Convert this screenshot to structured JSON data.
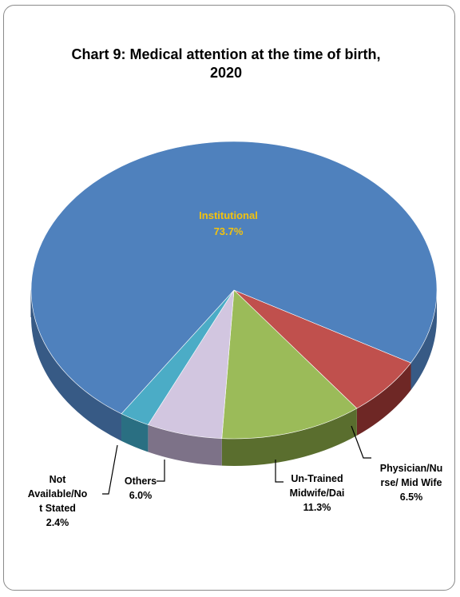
{
  "chart_data": {
    "type": "pie",
    "title_lines": [
      "Chart 9: Medical attention at the time of birth,",
      "2020"
    ],
    "slices": [
      {
        "key": "institutional",
        "label_lines": [
          "Institutional"
        ],
        "value_text": "73.7%",
        "value": 73.7,
        "color": "#4F81BD",
        "side": "#375A85",
        "label_color": "#F2C20F"
      },
      {
        "key": "physician",
        "label_lines": [
          "Physician/Nu",
          "rse/ Mid Wife"
        ],
        "value_text": "6.5%",
        "value": 6.5,
        "color": "#C0504D",
        "side": "#6E2725",
        "label_color": "#000000"
      },
      {
        "key": "untrained",
        "label_lines": [
          "Un-Trained",
          "Midwife/Dai"
        ],
        "value_text": "11.3%",
        "value": 11.3,
        "color": "#9BBB59",
        "side": "#5A6E2E",
        "label_color": "#000000"
      },
      {
        "key": "others",
        "label_lines": [
          "Others"
        ],
        "value_text": "6.0%",
        "value": 6.0,
        "color": "#D2C6E0",
        "side": "#7D7288",
        "label_color": "#000000"
      },
      {
        "key": "not_available",
        "label_lines": [
          "Not",
          "Available/No",
          "t Stated"
        ],
        "value_text": "2.4%",
        "value": 2.4,
        "color": "#4BACC6",
        "side": "#2A6F82",
        "label_color": "#000000"
      }
    ]
  }
}
